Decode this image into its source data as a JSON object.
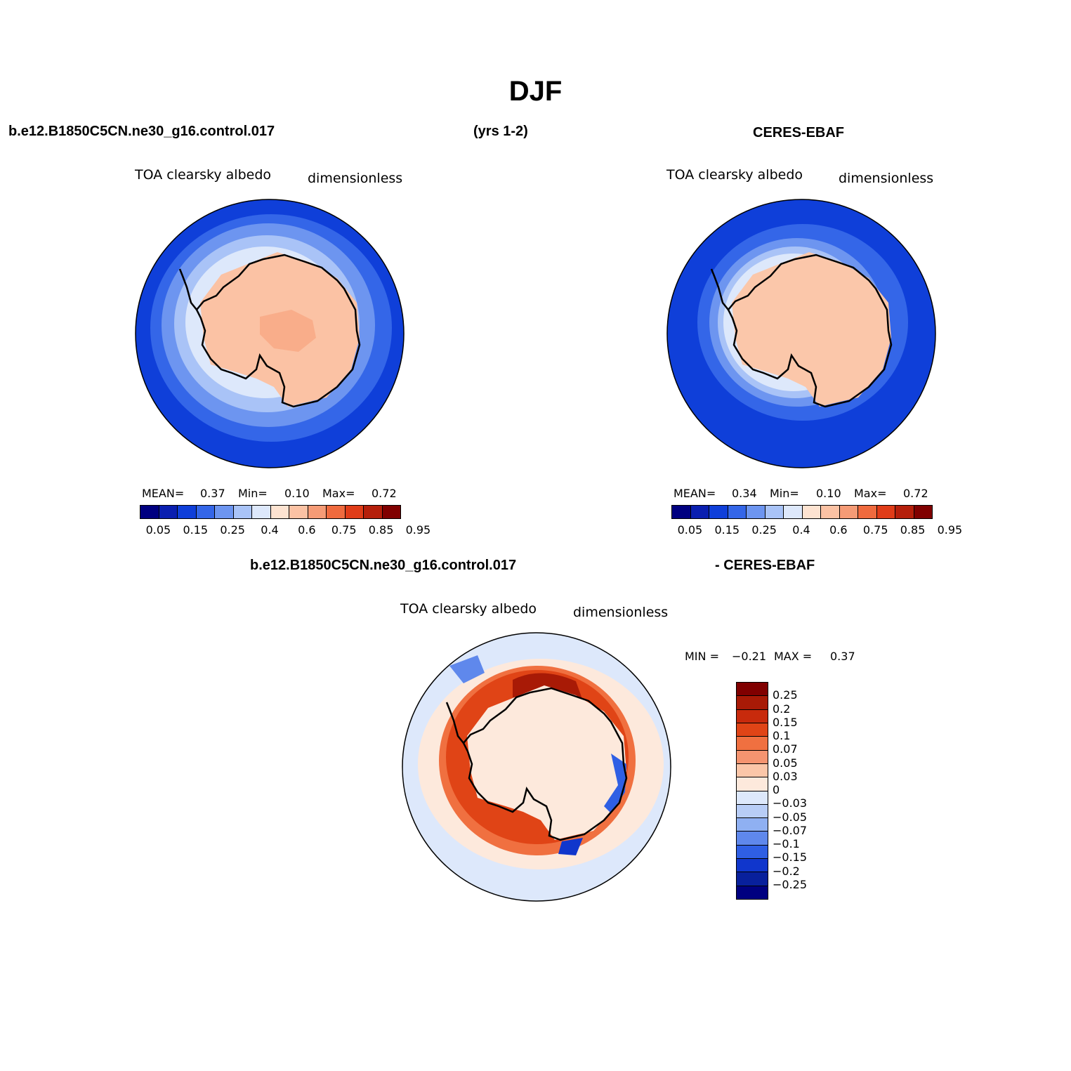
{
  "chart_data": [
    {
      "type": "polar_contour_map",
      "panel": "model",
      "region": "Antarctica (south polar stereographic)",
      "case": "b.e12.B1850C5CN.ne30_g16.control.017",
      "period": "(yrs 1-2)",
      "variable": "TOA clearsky albedo",
      "units": "dimensionless",
      "stats": {
        "mean_label": "MEAN=",
        "mean": "0.37",
        "min_label": "Min=",
        "min": "0.10",
        "max_label": "Max=",
        "max": "0.72"
      },
      "colorbar_ticks": [
        "0.05",
        "0.15",
        "0.25",
        "0.4",
        "0.6",
        "0.75",
        "0.85",
        "0.95"
      ],
      "colorbar_colors": [
        "#000080",
        "#0a1fb0",
        "#0f3fd9",
        "#3466e8",
        "#6d95f0",
        "#a9c3f7",
        "#dde8fb",
        "#fde3d1",
        "#fbc2a4",
        "#f59b76",
        "#ef6a3e",
        "#e03c18",
        "#b51f0b",
        "#800000"
      ]
    },
    {
      "type": "polar_contour_map",
      "panel": "observations",
      "region": "Antarctica (south polar stereographic)",
      "case": "CERES-EBAF",
      "variable": "TOA clearsky albedo",
      "units": "dimensionless",
      "stats": {
        "mean_label": "MEAN=",
        "mean": "0.34",
        "min_label": "Min=",
        "min": "0.10",
        "max_label": "Max=",
        "max": "0.72"
      },
      "colorbar_ticks": [
        "0.05",
        "0.15",
        "0.25",
        "0.4",
        "0.6",
        "0.75",
        "0.85",
        "0.95"
      ]
    },
    {
      "type": "polar_contour_map",
      "panel": "difference",
      "case_left": "b.e12.B1850C5CN.ne30_g16.control.017",
      "case_right": "- CERES-EBAF",
      "variable": "TOA clearsky albedo",
      "units": "dimensionless",
      "stats": {
        "min_label": "MIN =",
        "min": "−0.21",
        "max_label": "MAX =",
        "max": "0.37"
      },
      "colorbar_levels": [
        "0.25",
        "0.2",
        "0.15",
        "0.1",
        "0.07",
        "0.05",
        "0.03",
        "0",
        "−0.03",
        "−0.05",
        "−0.07",
        "−0.1",
        "−0.15",
        "−0.2",
        "−0.25"
      ],
      "colorbar_colors": [
        "#800000",
        "#a81a06",
        "#c82a0c",
        "#e04416",
        "#f07040",
        "#f59470",
        "#fbc6a8",
        "#fde9dc",
        "#dde8fb",
        "#b8cdf6",
        "#8fb0f2",
        "#5f88ec",
        "#2f5fe4",
        "#1036cc",
        "#08209c",
        "#000080"
      ]
    }
  ],
  "title": "DJF",
  "top_left_case": "b.e12.B1850C5CN.ne30_g16.control.017",
  "top_center": "(yrs 1-2)",
  "top_right_case": "CERES-EBAF",
  "bottom_left_case": "b.e12.B1850C5CN.ne30_g16.control.017",
  "bottom_right_case": "- CERES-EBAF"
}
